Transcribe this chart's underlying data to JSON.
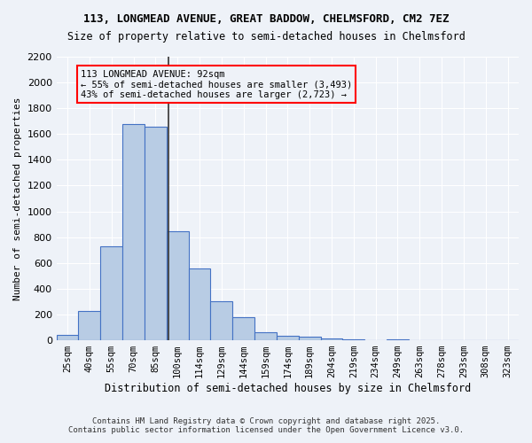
{
  "title1": "113, LONGMEAD AVENUE, GREAT BADDOW, CHELMSFORD, CM2 7EZ",
  "title2": "Size of property relative to semi-detached houses in Chelmsford",
  "xlabel": "Distribution of semi-detached houses by size in Chelmsford",
  "ylabel": "Number of semi-detached properties",
  "bar_labels": [
    "25sqm",
    "40sqm",
    "55sqm",
    "70sqm",
    "85sqm",
    "100sqm",
    "114sqm",
    "129sqm",
    "144sqm",
    "159sqm",
    "174sqm",
    "189sqm",
    "204sqm",
    "219sqm",
    "234sqm",
    "249sqm",
    "263sqm",
    "278sqm",
    "293sqm",
    "308sqm",
    "323sqm"
  ],
  "bar_values": [
    40,
    225,
    730,
    1675,
    1660,
    845,
    560,
    300,
    180,
    65,
    35,
    25,
    15,
    5,
    0,
    10,
    0,
    0,
    0,
    0,
    0
  ],
  "bar_color": "#b8cce4",
  "bar_edge_color": "#4472c4",
  "ylim": [
    0,
    2200
  ],
  "yticks": [
    0,
    200,
    400,
    600,
    800,
    1000,
    1200,
    1400,
    1600,
    1800,
    2000,
    2200
  ],
  "property_size": 92,
  "property_bin_index": 4,
  "vline_x": 4.6,
  "annotation_title": "113 LONGMEAD AVENUE: 92sqm",
  "annotation_line1": "← 55% of semi-detached houses are smaller (3,493)",
  "annotation_line2": "43% of semi-detached houses are larger (2,723) →",
  "footer1": "Contains HM Land Registry data © Crown copyright and database right 2025.",
  "footer2": "Contains public sector information licensed under the Open Government Licence v3.0.",
  "bg_color": "#eef2f8",
  "grid_color": "#ffffff"
}
